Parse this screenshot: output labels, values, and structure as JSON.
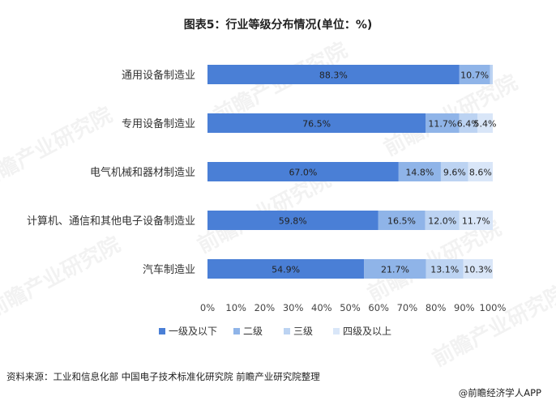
{
  "title": "图表5：行业等级分布情况(单位：%)",
  "source": "资料来源：工业和信息化部 中国电子技术标准化研究院 前瞻产业研究院整理",
  "credit": "@前瞻经济学人APP",
  "watermark": "前瞻产业研究院",
  "colors": {
    "series": [
      "#4a7fd6",
      "#8fb4e8",
      "#bcd3f2",
      "#d9e6f8"
    ],
    "label_on_dark": "#222222",
    "axis_text": "#444444",
    "grid": "#d9d9d9"
  },
  "chart_data": {
    "type": "bar",
    "orientation": "horizontal",
    "stacked": true,
    "categories": [
      "通用设备制造业",
      "专用设备制造业",
      "电气机械和器材制造业",
      "计算机、通信和其他电子设备制造业",
      "汽车制造业"
    ],
    "series": [
      {
        "name": "一级及以下",
        "values": [
          88.3,
          76.5,
          67.0,
          59.8,
          54.9
        ],
        "labels": [
          "88.3%",
          "76.5%",
          "67.0%",
          "59.8%",
          "54.9%"
        ]
      },
      {
        "name": "二级",
        "values": [
          10.7,
          11.7,
          14.8,
          16.5,
          21.7
        ],
        "labels": [
          "10.7%",
          "11.7%",
          "14.8%",
          "16.5%",
          "21.7%"
        ]
      },
      {
        "name": "三级",
        "values": [
          1.0,
          6.4,
          9.6,
          12.0,
          13.1
        ],
        "labels": [
          "",
          "6.4%",
          "9.6%",
          "12.0%",
          "13.1%"
        ]
      },
      {
        "name": "四级及以上",
        "values": [
          0,
          5.4,
          8.6,
          11.7,
          10.3
        ],
        "labels": [
          "",
          "5.4%",
          "8.6%",
          "11.7%",
          "10.3%"
        ]
      }
    ],
    "xlim": [
      0,
      100
    ],
    "xticks": [
      "0%",
      "10%",
      "20%",
      "30%",
      "40%",
      "50%",
      "60%",
      "70%",
      "80%",
      "90%",
      "100%"
    ],
    "grid": false,
    "legend_position": "bottom"
  }
}
